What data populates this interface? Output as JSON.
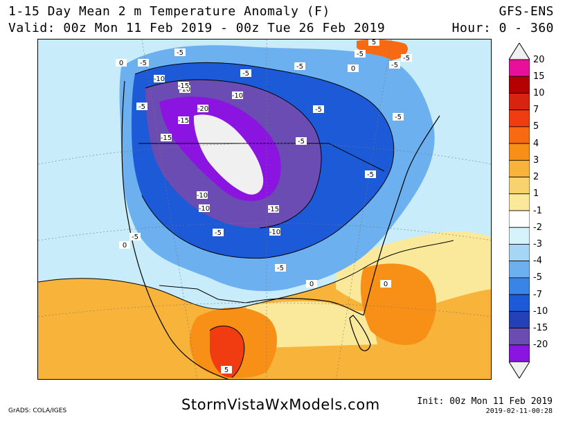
{
  "header": {
    "title": "1-15 Day Mean 2 m Temperature Anomaly (F)",
    "valid": "Valid: 00z Mon 11 Feb 2019 - 00z Tue 26 Feb 2019",
    "model": "GFS-ENS",
    "hour": "Hour: 0 - 360"
  },
  "footer": {
    "website": "StormVistaWxModels.com",
    "credit": "GrADS: COLA/IGES",
    "init": "Init: 00z Mon 11 Feb 2019",
    "timestamp": "2019-02-11-00:28"
  },
  "colorbar": {
    "labels": [
      "20",
      "15",
      "10",
      "7",
      "5",
      "4",
      "3",
      "2",
      "1",
      "-1",
      "-2",
      "-3",
      "-4",
      "-5",
      "-7",
      "-10",
      "-15",
      "-20"
    ],
    "colors": [
      "#f0f0f0",
      "#e8109a",
      "#b40000",
      "#d62410",
      "#f03c10",
      "#f86a12",
      "#f89018",
      "#f8b43a",
      "#f8d26e",
      "#fae99a",
      "#ffffff",
      "#d6f2fa",
      "#a6d6f6",
      "#6cb0f0",
      "#3a84e8",
      "#1c5ad8",
      "#2440b6",
      "#6a4cb2",
      "#8c14e0",
      "#f0f0f0"
    ],
    "outline": "#000000"
  },
  "map": {
    "contour_labels": [
      "-5",
      "-5",
      "-5",
      "-5",
      "-5",
      "-5",
      "-5",
      "-5",
      "-5",
      "-5",
      "-5",
      "-5",
      "-5",
      "-5",
      "-5",
      "-10",
      "-10",
      "-10",
      "-10",
      "-10",
      "-10",
      "-15",
      "-15",
      "-15",
      "-15",
      "-20",
      "0",
      "0",
      "0",
      "0",
      "0",
      "5",
      "5"
    ],
    "water_color": "#ffffff",
    "border_color": "#000000"
  }
}
